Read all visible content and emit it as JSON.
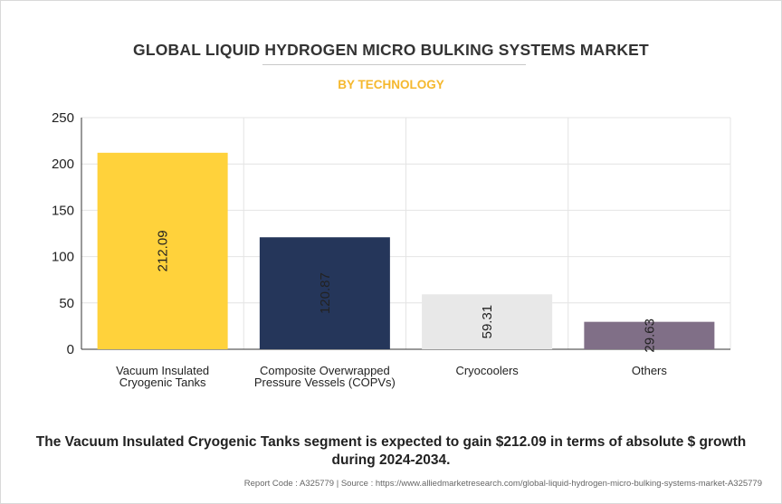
{
  "title": "GLOBAL LIQUID HYDROGEN MICRO BULKING SYSTEMS MARKET",
  "subtitle": "BY TECHNOLOGY",
  "footer": "The Vacuum Insulated Cryogenic Tanks segment is expected to gain $212.09 in terms of absolute $ growth during 2024-2034.",
  "source": "Report Code : A325779  |  Source : https://www.alliedmarketresearch.com/global-liquid-hydrogen-micro-bulking-systems-market-A325779",
  "colors": {
    "bar1": "#ffd23b",
    "bar2": "#25365a",
    "bar3": "#e8e8e8",
    "bar4": "#806f87",
    "axis": "#333333",
    "grid": "#e4e4e4"
  },
  "chart_data": {
    "type": "bar",
    "title": "GLOBAL LIQUID HYDROGEN MICRO BULKING SYSTEMS MARKET",
    "subtitle": "BY TECHNOLOGY",
    "categories": [
      [
        "Vacuum Insulated",
        "Cryogenic Tanks"
      ],
      [
        "Composite Overwrapped",
        "Pressure Vessels (COPVs)"
      ],
      [
        "Cryocoolers"
      ],
      [
        "Others"
      ]
    ],
    "values": [
      212.09,
      120.87,
      59.31,
      29.63
    ],
    "value_labels": [
      "212.09",
      "120.87",
      "59.31",
      "29.63"
    ],
    "ylim": [
      0,
      250
    ],
    "yticks": [
      0,
      50,
      100,
      150,
      200,
      250
    ],
    "grid": true,
    "legend": "none"
  }
}
